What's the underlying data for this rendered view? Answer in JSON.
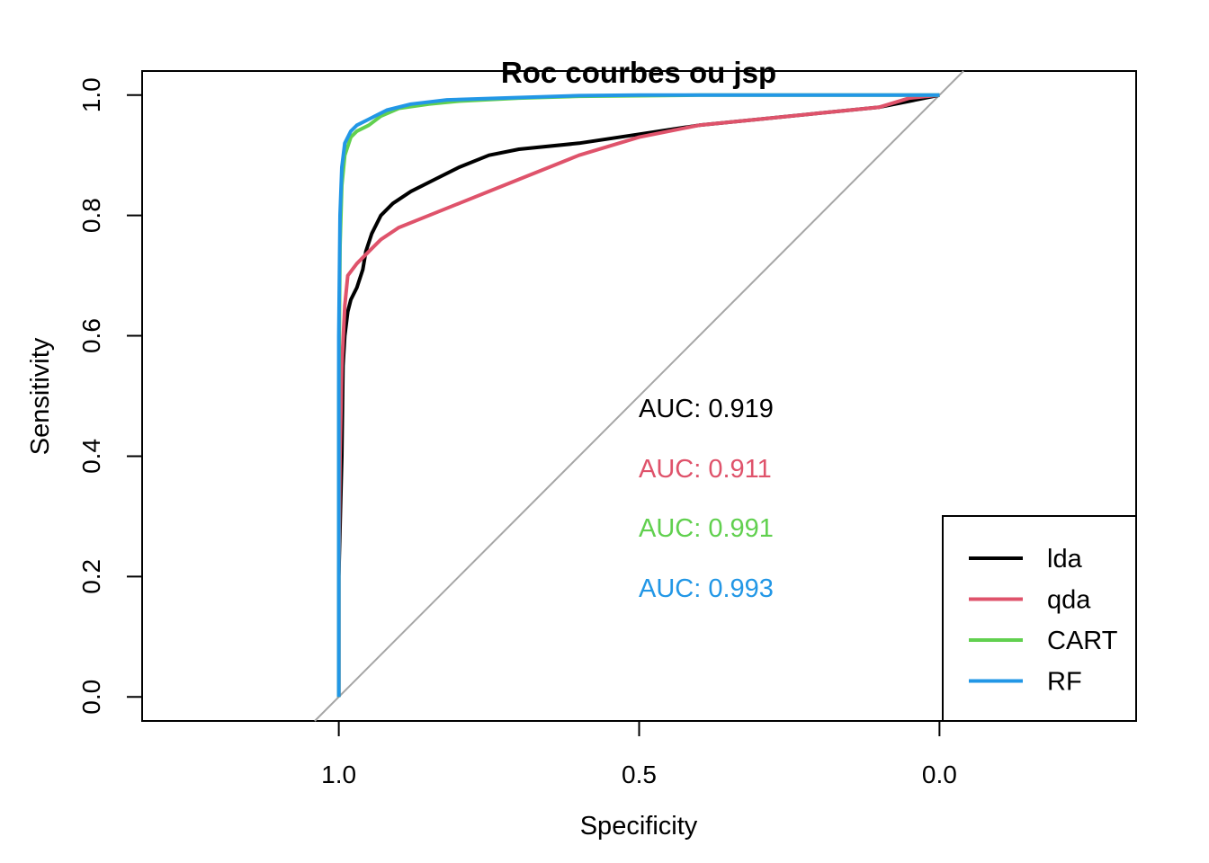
{
  "chart_data": {
    "type": "line",
    "title": "Roc courbes ou jsp",
    "xlabel": "Specificity",
    "ylabel": "Sensitivity",
    "x_reversed": true,
    "xlim": [
      1.3274,
      -0.3274
    ],
    "ylim": [
      -0.04,
      1.04
    ],
    "x_ticks": [
      1.0,
      0.5,
      0.0
    ],
    "x_tick_labels": [
      "1.0",
      "0.5",
      "0.0"
    ],
    "y_ticks": [
      0.0,
      0.2,
      0.4,
      0.6,
      0.8,
      1.0
    ],
    "y_tick_labels": [
      "0.0",
      "0.2",
      "0.4",
      "0.6",
      "0.8",
      "1.0"
    ],
    "grid": false,
    "diagonal_color": "#a6a6a6",
    "legend_position": "bottom-right",
    "series": [
      {
        "name": "lda",
        "color": "#000000",
        "auc_label": "AUC: 0.919",
        "points": [
          [
            1.0,
            0.0
          ],
          [
            1.0,
            0.2
          ],
          [
            0.995,
            0.4
          ],
          [
            0.993,
            0.55
          ],
          [
            0.99,
            0.6
          ],
          [
            0.985,
            0.64
          ],
          [
            0.98,
            0.66
          ],
          [
            0.97,
            0.68
          ],
          [
            0.96,
            0.71
          ],
          [
            0.955,
            0.74
          ],
          [
            0.945,
            0.77
          ],
          [
            0.93,
            0.8
          ],
          [
            0.91,
            0.82
          ],
          [
            0.88,
            0.84
          ],
          [
            0.84,
            0.86
          ],
          [
            0.8,
            0.88
          ],
          [
            0.75,
            0.9
          ],
          [
            0.7,
            0.91
          ],
          [
            0.6,
            0.92
          ],
          [
            0.5,
            0.935
          ],
          [
            0.4,
            0.95
          ],
          [
            0.3,
            0.96
          ],
          [
            0.2,
            0.97
          ],
          [
            0.1,
            0.98
          ],
          [
            0.05,
            0.99
          ],
          [
            0.0,
            1.0
          ]
        ]
      },
      {
        "name": "qda",
        "color": "#df536b",
        "auc_label": "AUC: 0.911",
        "points": [
          [
            1.0,
            0.0
          ],
          [
            1.0,
            0.2
          ],
          [
            0.998,
            0.4
          ],
          [
            0.995,
            0.55
          ],
          [
            0.99,
            0.65
          ],
          [
            0.985,
            0.7
          ],
          [
            0.97,
            0.72
          ],
          [
            0.95,
            0.74
          ],
          [
            0.93,
            0.76
          ],
          [
            0.9,
            0.78
          ],
          [
            0.85,
            0.8
          ],
          [
            0.8,
            0.82
          ],
          [
            0.75,
            0.84
          ],
          [
            0.7,
            0.86
          ],
          [
            0.65,
            0.88
          ],
          [
            0.6,
            0.9
          ],
          [
            0.5,
            0.93
          ],
          [
            0.4,
            0.95
          ],
          [
            0.3,
            0.96
          ],
          [
            0.2,
            0.97
          ],
          [
            0.1,
            0.98
          ],
          [
            0.05,
            0.995
          ],
          [
            0.0,
            1.0
          ]
        ]
      },
      {
        "name": "CART",
        "color": "#61d04f",
        "auc_label": "AUC: 0.991",
        "points": [
          [
            1.0,
            0.0
          ],
          [
            1.0,
            0.5
          ],
          [
            0.998,
            0.75
          ],
          [
            0.995,
            0.85
          ],
          [
            0.99,
            0.9
          ],
          [
            0.98,
            0.93
          ],
          [
            0.97,
            0.94
          ],
          [
            0.95,
            0.95
          ],
          [
            0.93,
            0.965
          ],
          [
            0.9,
            0.978
          ],
          [
            0.85,
            0.985
          ],
          [
            0.8,
            0.99
          ],
          [
            0.7,
            0.995
          ],
          [
            0.6,
            0.998
          ],
          [
            0.4,
            1.0
          ],
          [
            0.0,
            1.0
          ]
        ]
      },
      {
        "name": "RF",
        "color": "#2297e6",
        "auc_label": "AUC: 0.993",
        "points": [
          [
            1.0,
            0.0
          ],
          [
            1.0,
            0.6
          ],
          [
            0.998,
            0.8
          ],
          [
            0.995,
            0.88
          ],
          [
            0.99,
            0.92
          ],
          [
            0.98,
            0.94
          ],
          [
            0.97,
            0.95
          ],
          [
            0.95,
            0.96
          ],
          [
            0.92,
            0.975
          ],
          [
            0.88,
            0.985
          ],
          [
            0.82,
            0.992
          ],
          [
            0.7,
            0.996
          ],
          [
            0.6,
            0.999
          ],
          [
            0.5,
            1.0
          ],
          [
            0.0,
            1.0
          ]
        ]
      }
    ]
  }
}
